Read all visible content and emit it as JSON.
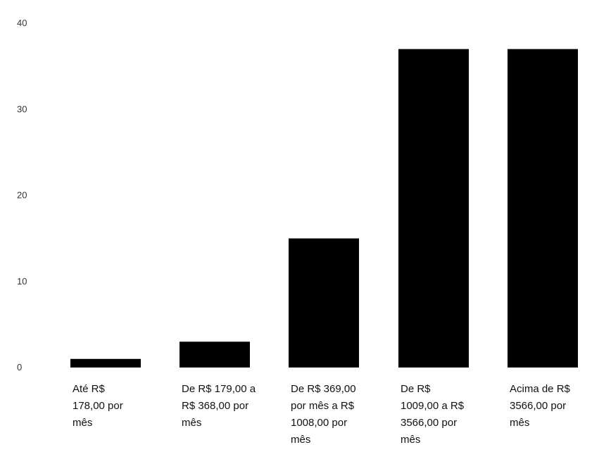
{
  "chart_data": {
    "type": "bar",
    "categories": [
      [
        "Até R$",
        "178,00 por",
        "mês"
      ],
      [
        "De R$ 179,00 a",
        "R$ 368,00 por",
        "mês"
      ],
      [
        "De R$ 369,00",
        "por mês a R$",
        "1008,00 por",
        "mês"
      ],
      [
        "De R$",
        "1009,00 a R$",
        "3566,00 por",
        "mês"
      ],
      [
        "Acima de R$",
        "3566,00 por",
        "mês"
      ]
    ],
    "values": [
      1,
      3,
      15,
      37,
      37
    ],
    "ylim": [
      0,
      40
    ],
    "yticks": [
      "0",
      "10",
      "20",
      "30",
      "40"
    ],
    "grid": false,
    "bar_color": "#000000"
  }
}
